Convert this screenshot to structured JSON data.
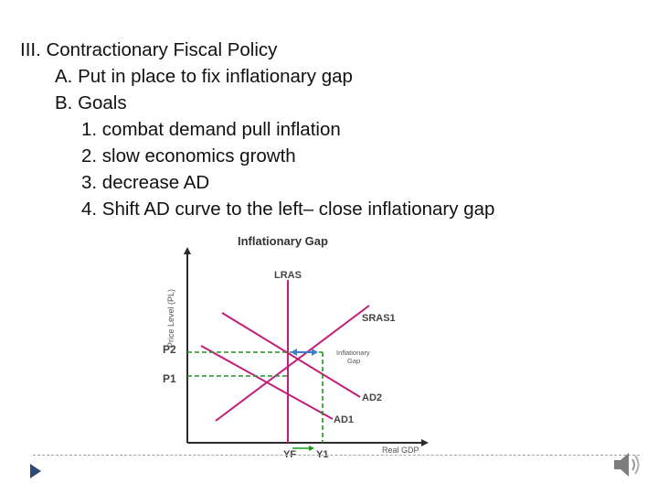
{
  "slide": {
    "outline": [
      {
        "level": 1,
        "text": "III.  Contractionary Fiscal Policy"
      },
      {
        "level": 2,
        "text": "A.  Put in place to fix inflationary gap"
      },
      {
        "level": 2,
        "text": "B.  Goals"
      },
      {
        "level": 3,
        "text": "1.  combat demand pull inflation"
      },
      {
        "level": 3,
        "text": "2.  slow economics growth"
      },
      {
        "level": 3,
        "text": "3.  decrease AD"
      },
      {
        "level": 3,
        "text": "4.  Shift AD curve to the left– close inflationary gap"
      }
    ]
  },
  "figure": {
    "title": "Inflationary Gap",
    "y_axis_label": "Price Level (PL)",
    "x_axis_label": "Real GDP",
    "lras_label": "LRAS",
    "sras_label": "SRAS1",
    "ad2_label": "AD2",
    "ad1_label": "AD1",
    "p2_label": "P2",
    "p1_label": "P1",
    "yf_label": "YF",
    "y1_label": "Y1",
    "gap_label_line1": "Inflationary",
    "gap_label_line2": "Gap"
  },
  "colors": {
    "lras": "#c21d78",
    "curves": "#c21d78",
    "guides": "#1a9a1a",
    "axis": "#2b2b2b",
    "gap_arrow": "#3b7fd1",
    "nav_arrow": "#2f4a7a"
  },
  "icons": {
    "nav": "play-next-icon",
    "audio": "speaker-icon"
  }
}
